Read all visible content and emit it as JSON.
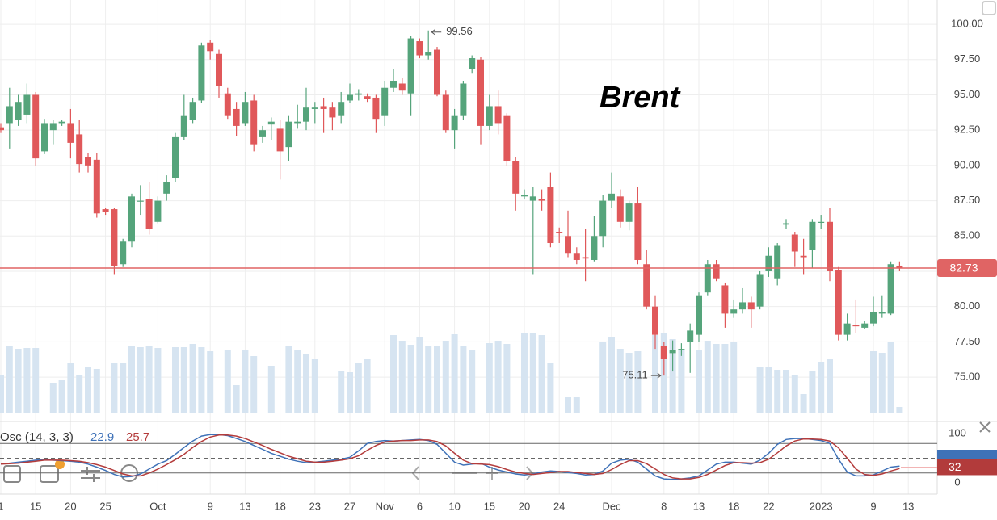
{
  "chart_data": [
    {
      "type": "candlestick",
      "title": "Brent",
      "categories": [
        "1",
        null,
        null,
        null,
        "15",
        null,
        null,
        null,
        "20",
        null,
        null,
        null,
        "25",
        null,
        null,
        null,
        null,
        null,
        "Oct",
        null,
        null,
        null,
        null,
        null,
        "9",
        null,
        null,
        null,
        "13",
        null,
        null,
        null,
        "18",
        null,
        null,
        null,
        "23",
        null,
        null,
        null,
        "27",
        null,
        null,
        null,
        "Nov",
        null,
        null,
        null,
        "6",
        null,
        null,
        null,
        "10",
        null,
        null,
        null,
        "15",
        null,
        null,
        null,
        "20",
        null,
        null,
        null,
        "24",
        null,
        null,
        null,
        null,
        null,
        "Dec",
        null,
        null,
        null,
        null,
        null,
        "8",
        null,
        null,
        null,
        "13",
        null,
        null,
        null,
        "18",
        null,
        null,
        null,
        "22",
        null,
        null,
        null,
        null,
        null,
        "2023",
        null,
        null,
        null,
        null,
        null,
        "9",
        null,
        null,
        null,
        "13"
      ],
      "open": [
        92.7,
        93,
        93.2,
        93.6,
        95,
        91,
        92.5,
        93,
        93,
        92.2,
        90.6,
        90.4,
        86.9,
        86.9,
        83,
        84.6,
        87.5,
        87.6,
        86,
        88,
        89.1,
        92,
        93.2,
        94.6,
        98.7,
        97.9,
        95.1,
        94,
        93,
        94.6,
        92,
        92.9,
        92.6,
        91.3,
        93,
        93.1,
        94,
        94.2,
        94.1,
        93.5,
        94.6,
        95,
        94.9,
        94.8,
        93.5,
        95.5,
        95.8,
        95.1,
        98.8,
        97.8,
        98.2,
        95,
        92.5,
        93.5,
        96.8,
        97.5,
        92.8,
        94.2,
        93.5,
        90.3,
        87.8,
        87.5,
        87.6,
        88.5,
        85.3,
        85,
        83.8,
        83.5,
        83.3,
        85,
        87.5,
        87.8,
        86,
        87.3,
        83,
        80,
        77.2,
        76.7,
        76.9,
        77.5,
        78,
        81,
        83,
        81.5,
        79.5,
        79.8,
        80.3,
        80,
        82.5,
        82,
        85.8,
        85.1,
        83.6,
        84,
        86,
        86,
        82.6,
        78,
        78.7,
        78.5,
        78.8,
        79.5,
        79.5,
        82.9,
        null
      ],
      "high": [
        93,
        95.5,
        95,
        95.8,
        95.2,
        93.3,
        93.2,
        93.2,
        94,
        93.2,
        90.9,
        90.9,
        87,
        87,
        84.8,
        88,
        88.6,
        88.8,
        87.8,
        89.3,
        92.3,
        95,
        94.8,
        98.7,
        98.9,
        98.2,
        95.5,
        94.5,
        95.2,
        95,
        92.8,
        93.4,
        93.2,
        93.5,
        94.3,
        95.5,
        94.5,
        94.8,
        94.5,
        95.2,
        95.8,
        95.4,
        95.1,
        95,
        96,
        96.8,
        96.2,
        99.2,
        99,
        99.56,
        98.4,
        95.3,
        94,
        96,
        97.8,
        97.7,
        95,
        95.3,
        93.7,
        90.6,
        88.3,
        88.5,
        88.3,
        89.5,
        85.6,
        86.8,
        84.2,
        85.5,
        86.4,
        87.9,
        89.5,
        88.3,
        87.5,
        88.5,
        84,
        80.8,
        77.5,
        77.6,
        77.4,
        78.8,
        81,
        83.3,
        83.3,
        81.7,
        80.5,
        81.3,
        80.7,
        82.5,
        84.2,
        84.5,
        86.2,
        85.3,
        84.8,
        86.2,
        86.5,
        87,
        82.8,
        79.5,
        80.5,
        79,
        80.7,
        80.8,
        83.2,
        83.2,
        null
      ],
      "low": [
        92.3,
        91.2,
        92.8,
        93,
        90,
        90.8,
        91.5,
        92.8,
        90.5,
        89.5,
        89.5,
        86.3,
        86.5,
        82.3,
        82.8,
        84.2,
        86.5,
        85.1,
        85.9,
        87.5,
        88.8,
        91.8,
        93,
        94.4,
        97.5,
        94.8,
        93.3,
        92.1,
        92.8,
        91,
        91.6,
        91.8,
        89,
        90.3,
        92.6,
        92.5,
        93,
        92.3,
        92.5,
        93,
        94.4,
        94.6,
        94.5,
        92.3,
        92.8,
        95.2,
        95,
        93.5,
        97.6,
        97.5,
        94.9,
        92.3,
        91.2,
        93.2,
        96.5,
        91.5,
        92.5,
        92.2,
        90,
        86.8,
        87.6,
        82.3,
        86.8,
        84.2,
        84.5,
        83.5,
        83,
        81.8,
        83.2,
        84.2,
        87,
        85.6,
        85.4,
        83,
        79.8,
        77,
        75.11,
        75.4,
        76.5,
        75.3,
        77.5,
        80.8,
        81.8,
        78.5,
        79.2,
        79.5,
        78.5,
        79.8,
        82.1,
        81.5,
        85.5,
        82.8,
        82.3,
        82.7,
        85.5,
        81.8,
        77.6,
        77.6,
        78.1,
        78.4,
        78.6,
        79.2,
        79.4,
        82.5,
        null
      ],
      "close": [
        92.5,
        94.2,
        94.5,
        95,
        90.5,
        93,
        93,
        93.1,
        91.6,
        90.1,
        90,
        86.6,
        86.7,
        82.9,
        84.6,
        87.8,
        87.5,
        85.5,
        87.5,
        88.8,
        92,
        93.5,
        94.5,
        98.5,
        98.1,
        95.6,
        93.5,
        92.8,
        94.5,
        91.5,
        92.5,
        93.1,
        91,
        93.1,
        93.1,
        94.1,
        94.1,
        94,
        93.4,
        94.5,
        95,
        95.1,
        94.7,
        93.3,
        95.5,
        96,
        95.3,
        99,
        97.8,
        98,
        95,
        92.5,
        93.5,
        95.8,
        97.6,
        92.8,
        94.2,
        93,
        90.3,
        88,
        87.9,
        87.8,
        87.5,
        84.5,
        85.2,
        83.8,
        83.3,
        83.4,
        85,
        87.5,
        88,
        86,
        87.3,
        83.3,
        80,
        78,
        76.3,
        76.9,
        77,
        78.3,
        80.8,
        83,
        82,
        79.5,
        79.8,
        80.3,
        79.8,
        82.3,
        83.6,
        84.3,
        85.9,
        83.9,
        83.5,
        86,
        86,
        82.5,
        78,
        78.8,
        78.6,
        78.8,
        79.6,
        79.6,
        83,
        82.73,
        null
      ],
      "volume": [
        47,
        83,
        80,
        81,
        81,
        0,
        38,
        42,
        62,
        47,
        57,
        55,
        0,
        62,
        62,
        84,
        82,
        83,
        81,
        0,
        82,
        82,
        86,
        82,
        77,
        0,
        79,
        35,
        79,
        71,
        0,
        59,
        0,
        83,
        79,
        74,
        67,
        0,
        0,
        52,
        51,
        62,
        68,
        0,
        0,
        97,
        90,
        85,
        95,
        83,
        84,
        90,
        98,
        84,
        78,
        0,
        87,
        90,
        86,
        0,
        100,
        100,
        97,
        63,
        0,
        20,
        20,
        0,
        0,
        88,
        95,
        80,
        75,
        77,
        0,
        97,
        100,
        92,
        78,
        0,
        78,
        90,
        86,
        86,
        88,
        0,
        0,
        57,
        57,
        54,
        54,
        47,
        24,
        52,
        64,
        68,
        0,
        0,
        0,
        0,
        77,
        75,
        88,
        8,
        null
      ],
      "up_color": "#55a47b",
      "down_color": "#e0585a",
      "volume_color": "#d6e4f1",
      "price_line_color": "#e06464",
      "ylim": [
        72.43,
        101.72
      ],
      "yticks": [
        {
          "value": 75,
          "label": "75.00"
        },
        {
          "value": 77.5,
          "label": "77.50"
        },
        {
          "value": 80,
          "label": "80.00"
        },
        {
          "value": 82.5,
          "label": "82.50"
        },
        {
          "value": 85,
          "label": "85.00"
        },
        {
          "value": 87.5,
          "label": "87.50"
        },
        {
          "value": 90,
          "label": "90.00"
        },
        {
          "value": 92.5,
          "label": "92.50"
        },
        {
          "value": 95,
          "label": "95.00"
        },
        {
          "value": 97.5,
          "label": "97.50"
        },
        {
          "value": 100,
          "label": "100.00"
        }
      ],
      "grid": true,
      "mark_extremes": true
    },
    {
      "type": "line",
      "title": "Osc (14, 3, 3)",
      "series": [
        {
          "color": "#3f72b8",
          "readout": 22.9,
          "values": [
            38,
            40,
            42,
            44,
            46,
            47,
            46,
            45,
            44,
            42,
            38,
            32,
            25,
            17,
            12,
            13,
            18,
            28,
            38,
            45,
            58,
            72,
            85,
            95,
            98,
            98,
            96,
            90,
            84,
            76,
            68,
            60,
            54,
            48,
            44,
            41,
            42,
            44,
            46,
            48,
            52,
            65,
            80,
            84,
            86,
            85,
            86,
            87,
            88,
            86,
            78,
            60,
            42,
            36,
            38,
            40,
            32,
            26,
            22,
            18,
            16,
            18,
            22,
            24,
            23,
            21,
            19,
            16,
            17,
            24,
            40,
            46,
            48,
            42,
            28,
            14,
            8,
            7,
            8,
            10,
            14,
            26,
            38,
            42,
            42,
            40,
            38,
            46,
            60,
            78,
            88,
            90,
            90,
            88,
            86,
            80,
            48,
            22,
            14,
            14,
            16,
            24,
            32,
            34,
            null
          ]
        },
        {
          "color": "#b43c3c",
          "readout": 25.7,
          "values": [
            38,
            39,
            40,
            42,
            44,
            46,
            46,
            46,
            45,
            44,
            41,
            37,
            32,
            25,
            18,
            14,
            14,
            20,
            28,
            37,
            47,
            58,
            72,
            84,
            93,
            97,
            97,
            95,
            90,
            83,
            76,
            68,
            61,
            54,
            49,
            44,
            42,
            42,
            44,
            46,
            49,
            55,
            66,
            76,
            83,
            85,
            86,
            86,
            87,
            87,
            84,
            75,
            60,
            46,
            39,
            38,
            37,
            33,
            27,
            22,
            19,
            17,
            19,
            21,
            23,
            23,
            21,
            19,
            17,
            19,
            27,
            37,
            45,
            45,
            39,
            28,
            17,
            10,
            8,
            8,
            11,
            17,
            26,
            35,
            41,
            41,
            40,
            41,
            48,
            61,
            75,
            85,
            89,
            89,
            88,
            85,
            71,
            50,
            28,
            17,
            15,
            18,
            24,
            29,
            null
          ]
        }
      ],
      "marker_value": 32,
      "marker_color": "#b23b3b",
      "ylim": [
        -23,
        123
      ],
      "yticks": [
        0,
        100
      ],
      "levels": [
        80,
        20
      ],
      "dashed_levels": [
        50
      ]
    }
  ]
}
